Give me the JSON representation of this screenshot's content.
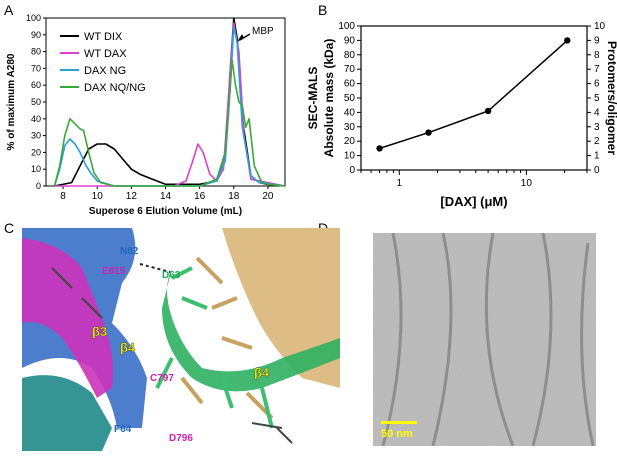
{
  "panels": {
    "A": {
      "label": "A"
    },
    "B": {
      "label": "B"
    },
    "C": {
      "label": "C"
    },
    "D": {
      "label": "D"
    }
  },
  "chart_data": [
    {
      "type": "line",
      "xlabel": "Superose 6 Elution Volume (mL)",
      "ylabel": "% of maximum A280",
      "xlim": [
        7,
        21
      ],
      "ylim": [
        0,
        100
      ],
      "xticks": [
        8,
        10,
        12,
        14,
        16,
        18,
        20
      ],
      "yticks": [
        0,
        10,
        20,
        30,
        40,
        50,
        60,
        70,
        80,
        90,
        100
      ],
      "annotation": "MBP",
      "legend_position": "top-left",
      "series": [
        {
          "name": "WT DIX",
          "color": "#000000",
          "x": [
            7.5,
            8.5,
            9.0,
            9.5,
            10.0,
            10.5,
            11.0,
            11.5,
            12.0,
            12.5,
            13.0,
            13.5,
            14.0,
            15.0,
            16.0,
            17.0,
            17.5,
            17.8,
            18.0,
            18.2,
            18.5,
            19.0,
            19.5,
            20.0,
            21.0
          ],
          "y": [
            0,
            2,
            12,
            22,
            25,
            25,
            22,
            16,
            10,
            7,
            5,
            3,
            1,
            1,
            1,
            3,
            20,
            70,
            100,
            88,
            40,
            6,
            2,
            1,
            0
          ]
        },
        {
          "name": "WT DAX",
          "color": "#e040c8",
          "x": [
            7.5,
            14.5,
            15.2,
            15.6,
            15.9,
            16.2,
            16.6,
            17.0,
            17.4,
            17.8,
            18.0,
            18.3,
            18.6,
            19.0,
            21.0
          ],
          "y": [
            0,
            0,
            3,
            15,
            25,
            20,
            7,
            3,
            10,
            70,
            97,
            80,
            30,
            4,
            0
          ]
        },
        {
          "name": "DAX NG",
          "color": "#2aa0d8",
          "x": [
            7.5,
            7.8,
            8.1,
            8.4,
            8.7,
            9.0,
            9.3,
            9.6,
            10.0,
            11.0,
            16.0,
            17.0,
            17.5,
            17.8,
            18.0,
            18.2,
            18.5,
            19.0,
            19.5,
            21.0
          ],
          "y": [
            0,
            10,
            24,
            28,
            25,
            20,
            13,
            8,
            3,
            0,
            0,
            3,
            15,
            60,
            95,
            85,
            35,
            6,
            2,
            0
          ]
        },
        {
          "name": "DAX NQ/NG",
          "color": "#3aa83a",
          "x": [
            7.5,
            7.8,
            8.1,
            8.4,
            8.7,
            9.0,
            9.2,
            9.5,
            9.8,
            10.2,
            11.0,
            16.0,
            17.0,
            17.5,
            17.9,
            18.1,
            18.3,
            18.5,
            18.7,
            18.9,
            19.2,
            19.6,
            20.0,
            21.0
          ],
          "y": [
            0,
            12,
            30,
            40,
            37,
            34,
            33,
            20,
            8,
            2,
            0,
            0,
            4,
            20,
            75,
            60,
            50,
            48,
            35,
            40,
            12,
            3,
            1,
            0
          ]
        }
      ]
    },
    {
      "type": "line",
      "title": "",
      "xlabel": "[DAX] (μM)",
      "ylabel_left_1": "SEC-MALS",
      "ylabel_left_2": "Absolute mass (kDa)",
      "ylabel_right": "Protomers/oligomer",
      "xscale": "log",
      "xlim": [
        0.5,
        30
      ],
      "ylim": [
        0,
        100
      ],
      "yticks": [
        0,
        10,
        20,
        30,
        40,
        50,
        60,
        70,
        80,
        90,
        100
      ],
      "yticks_right": [
        0,
        1,
        2,
        3,
        4,
        5,
        6,
        7,
        8,
        9,
        10
      ],
      "xticks": [
        1,
        10
      ],
      "series": [
        {
          "color": "#000000",
          "x": [
            0.7,
            1.7,
            5.0,
            21.0
          ],
          "y": [
            15,
            26,
            41,
            90
          ]
        }
      ]
    }
  ],
  "structure_labels": [
    {
      "text": "N82",
      "color": "#2266bb"
    },
    {
      "text": "E815",
      "color": "#cc22aa"
    },
    {
      "text": "D63",
      "color": "#22aa55"
    },
    {
      "text": "β3",
      "color": "#ffff00"
    },
    {
      "text": "β4",
      "color": "#ffff00"
    },
    {
      "text": "C797",
      "color": "#cc22aa"
    },
    {
      "text": "β4",
      "color": "#ffff00"
    },
    {
      "text": "F64",
      "color": "#2266bb"
    },
    {
      "text": "D796",
      "color": "#cc22aa"
    }
  ],
  "micrograph": {
    "scale_bar": "50 nm",
    "scale_color": "#ffff00"
  }
}
